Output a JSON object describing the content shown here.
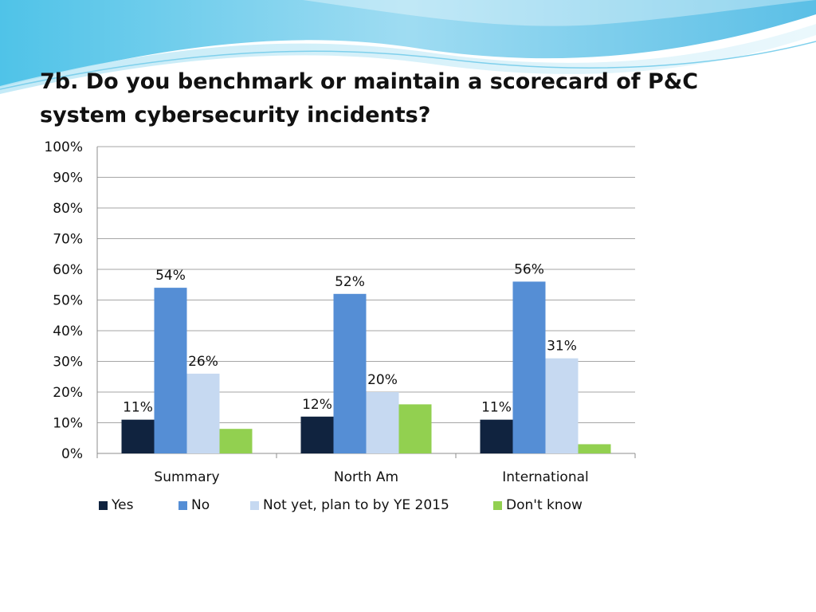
{
  "slide": {
    "title": "7b. Do you benchmark or maintain a scorecard of P&C system cybersecurity incidents?"
  },
  "chart_data": {
    "type": "bar",
    "title": "7b. Do you benchmark or maintain a scorecard of P&C system cybersecurity incidents?",
    "categories": [
      "Summary",
      "North Am",
      "International"
    ],
    "series": [
      {
        "name": "Yes",
        "color": "#10233f",
        "values": [
          11,
          12,
          11
        ],
        "labels": [
          "11%",
          "12%",
          "11%"
        ]
      },
      {
        "name": "No",
        "color": "#558ed5",
        "values": [
          54,
          52,
          56
        ],
        "labels": [
          "54%",
          "52%",
          "56%"
        ]
      },
      {
        "name": "Not yet, plan to by YE 2015",
        "color": "#c6d9f1",
        "values": [
          26,
          20,
          31
        ],
        "labels": [
          "26%",
          "20%",
          "31%"
        ]
      },
      {
        "name": "Don't know",
        "color": "#92d050",
        "values": [
          8,
          16,
          3
        ],
        "labels": [
          "",
          "",
          ""
        ]
      }
    ],
    "ylim": [
      0,
      100
    ],
    "yticks": [
      "0%",
      "10%",
      "20%",
      "30%",
      "40%",
      "50%",
      "60%",
      "70%",
      "80%",
      "90%",
      "100%"
    ],
    "xlabel": "",
    "ylabel": "",
    "grid": true,
    "legend": "bottom"
  }
}
